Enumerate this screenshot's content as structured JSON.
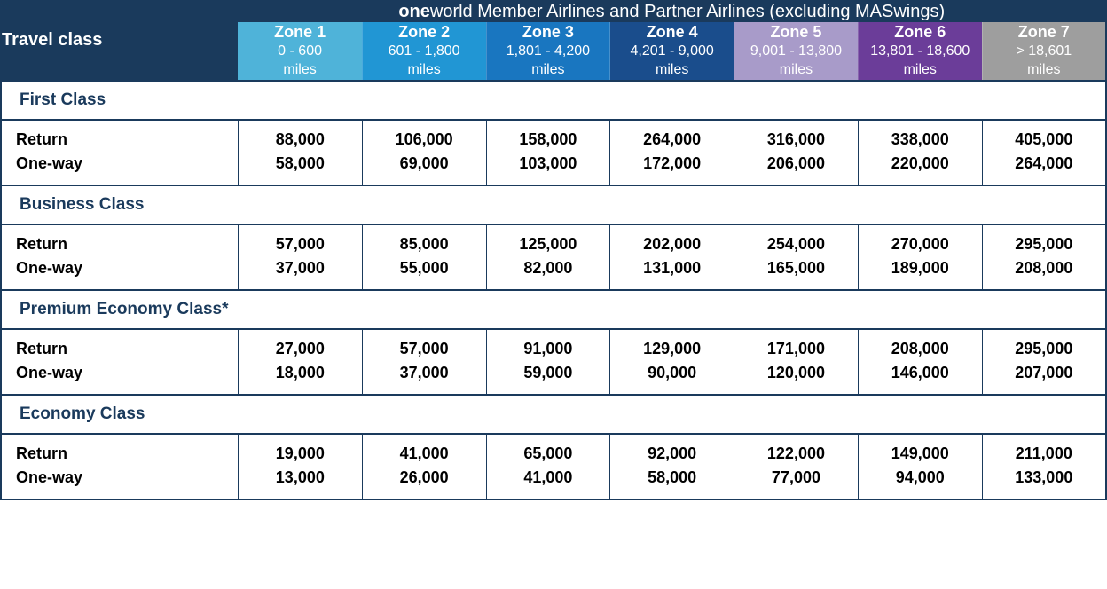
{
  "header": {
    "title_bold": "one",
    "title_rest": "world Member Airlines and Partner Airlines (excluding MASwings)",
    "travel_class_label": "Travel class"
  },
  "zones": [
    {
      "title": "Zone 1",
      "range": "0 - 600",
      "miles": "miles",
      "bg": "#4fb3d9"
    },
    {
      "title": "Zone 2",
      "range": "601 - 1,800",
      "miles": "miles",
      "bg": "#2196d4"
    },
    {
      "title": "Zone 3",
      "range": "1,801 - 4,200",
      "miles": "miles",
      "bg": "#1976c0"
    },
    {
      "title": "Zone 4",
      "range": "4,201 - 9,000",
      "miles": "miles",
      "bg": "#1a4d8c"
    },
    {
      "title": "Zone 5",
      "range": "9,001 - 13,800",
      "miles": "miles",
      "bg": "#a89bc9"
    },
    {
      "title": "Zone 6",
      "range": "13,801 - 18,600",
      "miles": "miles",
      "bg": "#6b3d99"
    },
    {
      "title": "Zone 7",
      "range": "> 18,601",
      "miles": "miles",
      "bg": "#9e9e9e"
    }
  ],
  "row_labels": {
    "return": "Return",
    "oneway": "One-way"
  },
  "classes": [
    {
      "name": "First Class",
      "return": [
        "88,000",
        "106,000",
        "158,000",
        "264,000",
        "316,000",
        "338,000",
        "405,000"
      ],
      "oneway": [
        "58,000",
        "69,000",
        "103,000",
        "172,000",
        "206,000",
        "220,000",
        "264,000"
      ]
    },
    {
      "name": "Business Class",
      "return": [
        "57,000",
        "85,000",
        "125,000",
        "202,000",
        "254,000",
        "270,000",
        "295,000"
      ],
      "oneway": [
        "37,000",
        "55,000",
        "82,000",
        "131,000",
        "165,000",
        "189,000",
        "208,000"
      ]
    },
    {
      "name": "Premium Economy Class*",
      "return": [
        "27,000",
        "57,000",
        "91,000",
        "129,000",
        "171,000",
        "208,000",
        "295,000"
      ],
      "oneway": [
        "18,000",
        "37,000",
        "59,000",
        "90,000",
        "120,000",
        "146,000",
        "207,000"
      ]
    },
    {
      "name": "Economy Class",
      "return": [
        "19,000",
        "41,000",
        "65,000",
        "92,000",
        "122,000",
        "149,000",
        "211,000"
      ],
      "oneway": [
        "13,000",
        "26,000",
        "41,000",
        "58,000",
        "77,000",
        "94,000",
        "133,000"
      ]
    }
  ],
  "colors": {
    "header_bg": "#1a3a5c",
    "border": "#1a3a5c",
    "class_text": "#1a3a5c"
  }
}
